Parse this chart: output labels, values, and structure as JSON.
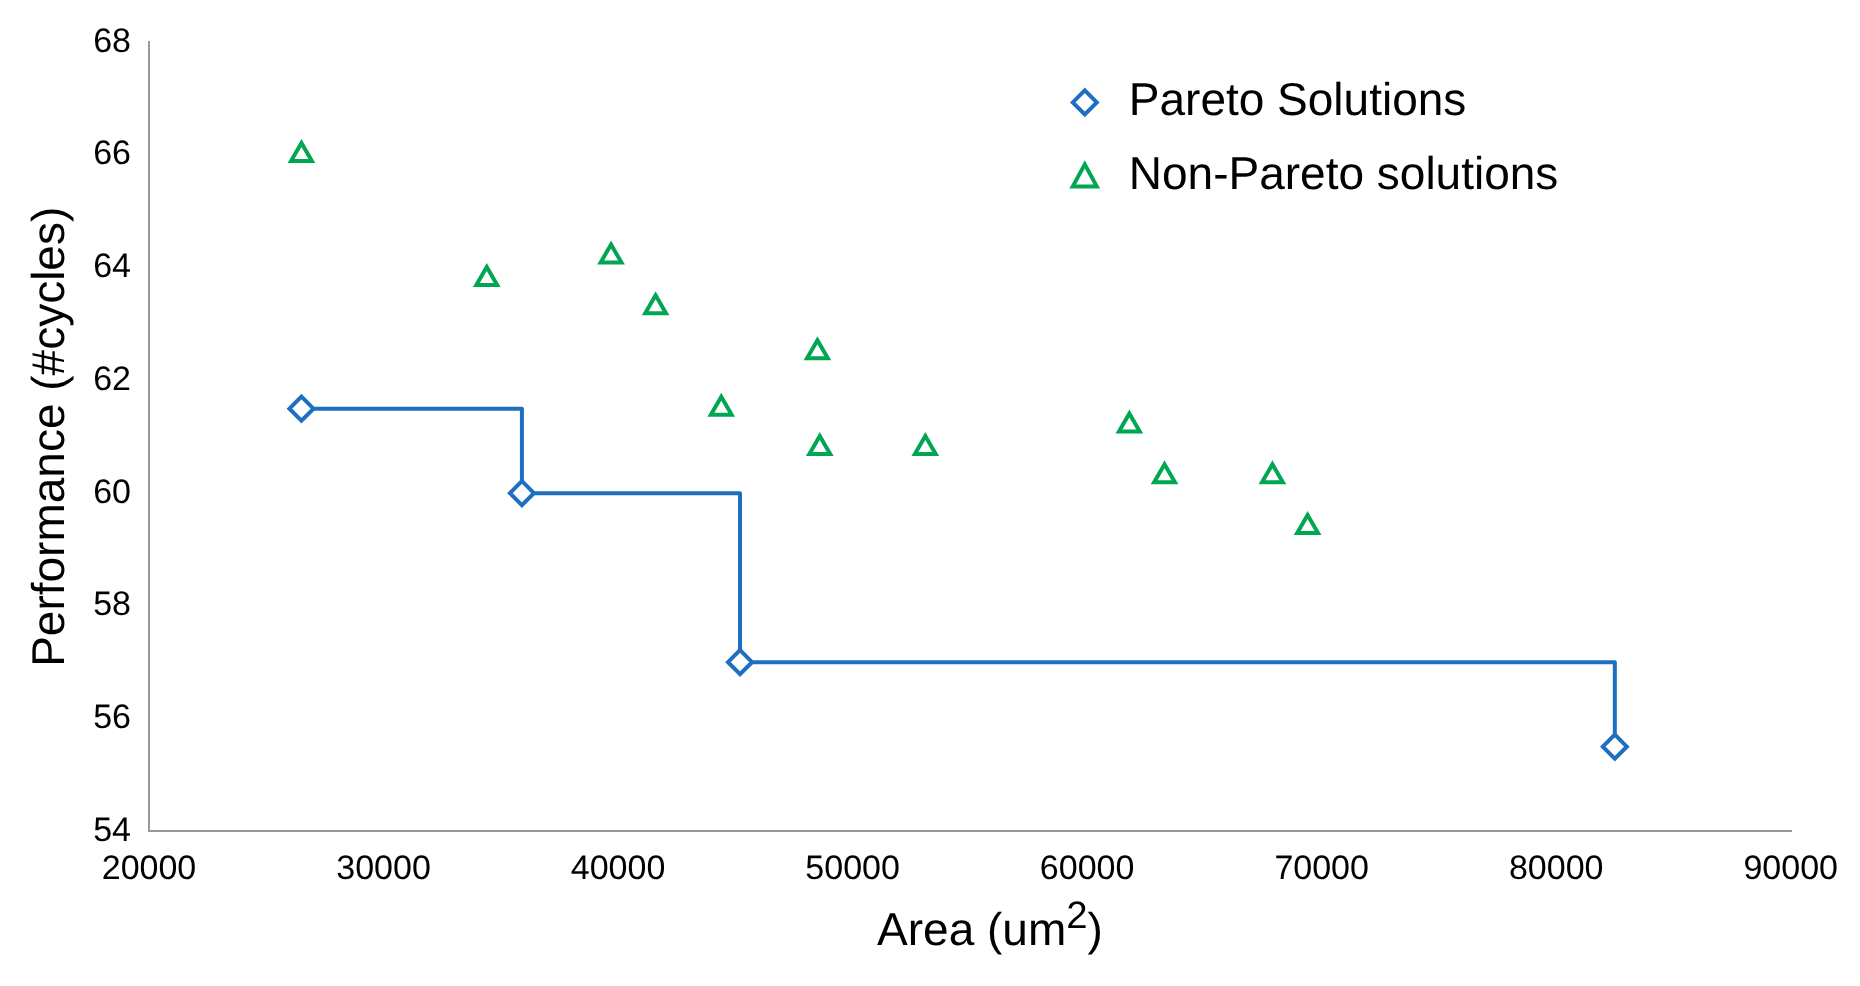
{
  "chart_data": {
    "type": "scatter",
    "xlabel": "Area (um$^{2}$)",
    "ylabel": "Performance (#cycles)",
    "xlim": [
      20000,
      90000
    ],
    "xticks": [
      20000,
      30000,
      40000,
      50000,
      60000,
      70000,
      80000,
      90000
    ],
    "ylim": [
      54,
      68
    ],
    "yticks": [
      54,
      56,
      58,
      60,
      62,
      64,
      66,
      68
    ],
    "grid": false,
    "legend": "top right",
    "series": [
      {
        "name": "Pareto Solutions",
        "type": "step",
        "color": "#1f6fc1",
        "marker": "diamond",
        "x": [
          26500,
          35900,
          45200,
          82500
        ],
        "values": [
          61.5,
          60,
          57,
          55.5
        ]
      },
      {
        "name": "Non-Pareto solutions",
        "type": "scatter",
        "color": "#00a651",
        "marker": "triangle",
        "x": [
          26500,
          34400,
          39700,
          41600,
          44400,
          48500,
          48600,
          53100,
          61800,
          63300,
          67900,
          69400
        ],
        "values": [
          66,
          63.8,
          64.2,
          63.3,
          61.5,
          62.5,
          60.8,
          60.8,
          61.2,
          60.3,
          60.3,
          59.4
        ]
      }
    ]
  }
}
